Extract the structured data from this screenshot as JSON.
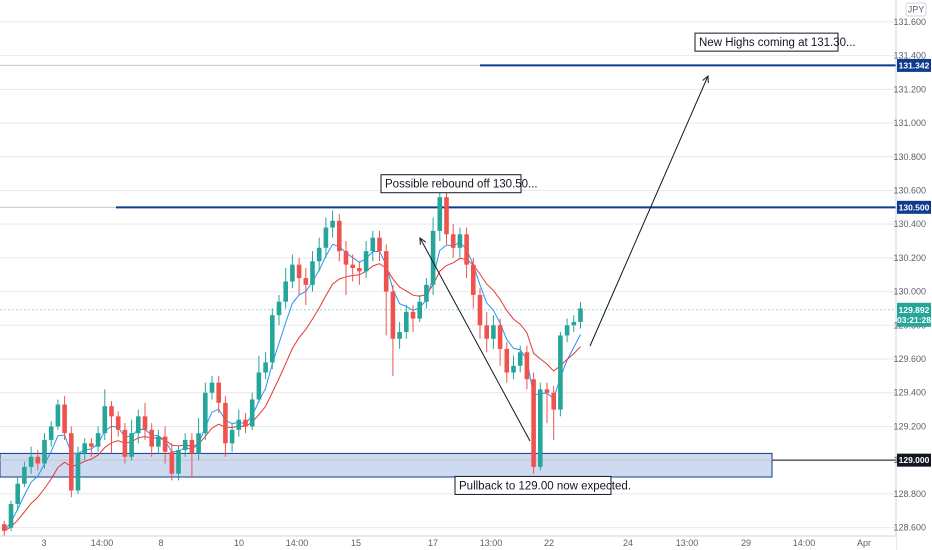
{
  "chart_data": {
    "type": "candlestick",
    "currency": "JPY",
    "y_ticks": [
      "131.600",
      "131.400",
      "131.200",
      "131.000",
      "130.800",
      "130.600",
      "130.400",
      "130.200",
      "130.000",
      "129.800",
      "129.600",
      "129.400",
      "129.200",
      "129.000",
      "128.800",
      "128.600"
    ],
    "ylim": [
      128.55,
      131.73
    ],
    "x_ticks": [
      "3",
      "14:00",
      "8",
      "10",
      "14:00",
      "15",
      "17",
      "13:00",
      "22",
      "24",
      "13:00",
      "29",
      "14:00",
      "Apr"
    ],
    "candles": [
      [
        128.62,
        128.58,
        128.64,
        128.55
      ],
      [
        128.6,
        128.74,
        128.76,
        128.58
      ],
      [
        128.74,
        128.86,
        128.9,
        128.7
      ],
      [
        128.86,
        128.96,
        128.99,
        128.84
      ],
      [
        128.96,
        129.02,
        129.08,
        128.92
      ],
      [
        129.02,
        128.98,
        129.06,
        128.94
      ],
      [
        128.98,
        129.12,
        129.16,
        128.95
      ],
      [
        129.12,
        129.2,
        129.23,
        129.08
      ],
      [
        129.2,
        129.33,
        129.36,
        129.18
      ],
      [
        129.33,
        129.16,
        129.38,
        129.12
      ],
      [
        129.16,
        128.82,
        129.2,
        128.78
      ],
      [
        128.82,
        129.04,
        129.08,
        128.8
      ],
      [
        129.04,
        129.1,
        129.13,
        129.0
      ],
      [
        129.1,
        129.08,
        129.13,
        129.02
      ],
      [
        129.08,
        129.16,
        129.2,
        129.05
      ],
      [
        129.16,
        129.32,
        129.42,
        129.12
      ],
      [
        129.32,
        129.26,
        129.35,
        129.04
      ],
      [
        129.26,
        129.18,
        129.29,
        129.14
      ],
      [
        129.18,
        129.02,
        129.22,
        128.98
      ],
      [
        129.02,
        129.16,
        129.24,
        129.0
      ],
      [
        129.16,
        129.26,
        129.3,
        129.1
      ],
      [
        129.26,
        129.18,
        129.34,
        129.12
      ],
      [
        129.18,
        129.08,
        129.22,
        129.02
      ],
      [
        129.08,
        129.14,
        129.18,
        129.04
      ],
      [
        129.14,
        129.05,
        129.2,
        128.98
      ],
      [
        129.05,
        128.92,
        129.1,
        128.88
      ],
      [
        128.92,
        129.06,
        129.08,
        128.88
      ],
      [
        129.06,
        129.12,
        129.16,
        129.02
      ],
      [
        129.12,
        129.04,
        129.16,
        128.9
      ],
      [
        129.04,
        129.16,
        129.25,
        129.0
      ],
      [
        129.16,
        129.4,
        129.46,
        129.12
      ],
      [
        129.4,
        129.46,
        129.5,
        129.36
      ],
      [
        129.46,
        129.34,
        129.5,
        129.28
      ],
      [
        129.34,
        129.1,
        129.38,
        129.02
      ],
      [
        129.1,
        129.18,
        129.22,
        129.05
      ],
      [
        129.18,
        129.24,
        129.3,
        129.14
      ],
      [
        129.24,
        129.2,
        129.28,
        129.16
      ],
      [
        129.2,
        129.36,
        129.4,
        129.18
      ],
      [
        129.36,
        129.52,
        129.62,
        129.34
      ],
      [
        129.52,
        129.58,
        129.64,
        129.48
      ],
      [
        129.58,
        129.86,
        129.9,
        129.54
      ],
      [
        129.86,
        129.94,
        129.98,
        129.8
      ],
      [
        129.94,
        130.06,
        130.14,
        129.9
      ],
      [
        130.06,
        130.16,
        130.22,
        130.02
      ],
      [
        130.16,
        130.08,
        130.2,
        129.98
      ],
      [
        130.08,
        130.04,
        130.14,
        129.92
      ],
      [
        130.04,
        130.18,
        130.24,
        130.0
      ],
      [
        130.18,
        130.26,
        130.32,
        130.12
      ],
      [
        130.26,
        130.38,
        130.44,
        130.2
      ],
      [
        130.38,
        130.42,
        130.48,
        130.32
      ],
      [
        130.42,
        130.24,
        130.46,
        130.18
      ],
      [
        130.24,
        130.16,
        130.3,
        129.98
      ],
      [
        130.16,
        130.14,
        130.22,
        130.06
      ],
      [
        130.14,
        130.12,
        130.18,
        130.04
      ],
      [
        130.12,
        130.24,
        130.3,
        130.08
      ],
      [
        130.24,
        130.32,
        130.36,
        130.18
      ],
      [
        130.32,
        130.24,
        130.36,
        130.18
      ],
      [
        130.24,
        130.0,
        130.28,
        129.74
      ],
      [
        130.0,
        129.72,
        130.04,
        129.5
      ],
      [
        129.72,
        129.76,
        129.82,
        129.66
      ],
      [
        129.76,
        129.88,
        129.92,
        129.72
      ],
      [
        129.88,
        129.84,
        129.92,
        129.76
      ],
      [
        129.84,
        129.94,
        129.98,
        129.82
      ],
      [
        129.94,
        130.04,
        130.08,
        129.9
      ],
      [
        130.04,
        130.36,
        130.44,
        129.98
      ],
      [
        130.36,
        130.56,
        130.62,
        130.3
      ],
      [
        130.56,
        130.34,
        130.6,
        130.28
      ],
      [
        130.34,
        130.26,
        130.4,
        130.2
      ],
      [
        130.26,
        130.34,
        130.38,
        130.2
      ],
      [
        130.34,
        130.16,
        130.38,
        130.08
      ],
      [
        130.16,
        129.98,
        130.2,
        129.9
      ],
      [
        129.98,
        129.8,
        130.02,
        129.72
      ],
      [
        129.8,
        129.72,
        129.88,
        129.64
      ],
      [
        129.72,
        129.8,
        129.86,
        129.66
      ],
      [
        129.8,
        129.66,
        129.84,
        129.56
      ],
      [
        129.66,
        129.52,
        129.7,
        129.46
      ],
      [
        129.52,
        129.56,
        129.62,
        129.48
      ],
      [
        129.56,
        129.64,
        129.68,
        129.52
      ],
      [
        129.64,
        129.48,
        129.68,
        129.42
      ],
      [
        129.48,
        128.96,
        129.52,
        128.92
      ],
      [
        128.96,
        129.42,
        129.46,
        128.94
      ],
      [
        129.42,
        129.4,
        129.46,
        129.22
      ],
      [
        129.4,
        129.3,
        129.44,
        129.12
      ],
      [
        129.3,
        129.74,
        129.76,
        129.26
      ],
      [
        129.74,
        129.8,
        129.84,
        129.7
      ],
      [
        129.8,
        129.82,
        129.86,
        129.76
      ],
      [
        129.82,
        129.9,
        129.94,
        129.78
      ]
    ],
    "horizontal_levels": [
      {
        "value": 131.342,
        "label": "131.342",
        "color": "#0d3c8f"
      },
      {
        "value": 130.5,
        "label": "130.500",
        "color": "#0d3c8f"
      },
      {
        "value": 129.0,
        "label": "129.000",
        "color": "#131722"
      }
    ],
    "current_price": {
      "value": 129.892,
      "label": "129.892",
      "countdown": "03:21:28",
      "color": "#26a69a"
    },
    "demand_zone": {
      "top": 129.04,
      "bottom": 128.9,
      "color": "#b9cae8"
    },
    "annotations": [
      {
        "text": "New Highs coming at 131.30...",
        "price": 131.48
      },
      {
        "text": "Possible rebound off 130.50...",
        "price": 130.64
      },
      {
        "text": "Pullback to 129.00 now expected.",
        "price": 128.85
      }
    ],
    "colors": {
      "up": "#26a69a",
      "down": "#ef5350",
      "ema_fast": "#2196f3",
      "ema_slow": "#e53935",
      "grid": "#e6e9ee"
    }
  }
}
